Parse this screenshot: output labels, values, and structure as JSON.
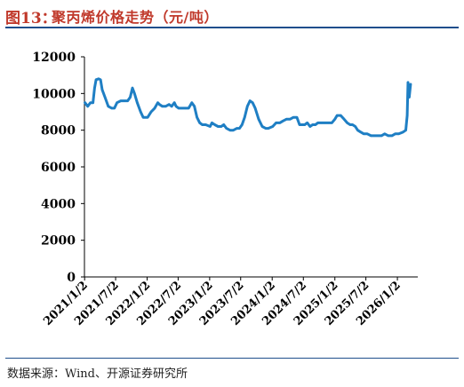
{
  "figure": {
    "number": "图13：",
    "title": "聚丙烯价格走势（元/吨）",
    "source": "数据来源：Wind、开源证券研究所"
  },
  "colors": {
    "title": "#c0392b",
    "rule": "#1f4e8c",
    "series": "#1f7fc4",
    "axis": "#000000"
  },
  "chart_data": {
    "type": "line",
    "title": "聚丙烯价格走势（元/吨）",
    "xlabel": "",
    "ylabel": "",
    "ylim": [
      0,
      12000
    ],
    "yticks": [
      0,
      2000,
      4000,
      6000,
      8000,
      10000,
      12000
    ],
    "xlim": [
      "2021-01-01",
      "2026-05-01"
    ],
    "xticks": [
      "2021/1/2",
      "2021/7/2",
      "2022/1/2",
      "2022/7/2",
      "2023/1/2",
      "2023/7/2",
      "2024/1/2",
      "2024/7/2",
      "2025/1/2",
      "2025/7/2",
      "2026/1/2"
    ],
    "grid": false,
    "legend": "none",
    "series": [
      {
        "values": [
          [
            "2021-01-04",
            9500
          ],
          [
            "2021-01-20",
            9300
          ],
          [
            "2021-02-05",
            9500
          ],
          [
            "2021-02-20",
            9500
          ],
          [
            "2021-03-01",
            10300
          ],
          [
            "2021-03-10",
            10750
          ],
          [
            "2021-03-25",
            10800
          ],
          [
            "2021-04-05",
            10750
          ],
          [
            "2021-04-15",
            10200
          ],
          [
            "2021-05-01",
            9800
          ],
          [
            "2021-05-20",
            9300
          ],
          [
            "2021-06-10",
            9200
          ],
          [
            "2021-06-25",
            9200
          ],
          [
            "2021-07-10",
            9500
          ],
          [
            "2021-08-01",
            9600
          ],
          [
            "2021-08-20",
            9600
          ],
          [
            "2021-09-10",
            9600
          ],
          [
            "2021-09-25",
            9800
          ],
          [
            "2021-10-08",
            10300
          ],
          [
            "2021-10-20",
            10000
          ],
          [
            "2021-11-05",
            9500
          ],
          [
            "2021-11-25",
            9000
          ],
          [
            "2021-12-10",
            8700
          ],
          [
            "2022-01-05",
            8700
          ],
          [
            "2022-01-25",
            9000
          ],
          [
            "2022-02-15",
            9200
          ],
          [
            "2022-03-05",
            9500
          ],
          [
            "2022-03-15",
            9400
          ],
          [
            "2022-04-01",
            9300
          ],
          [
            "2022-04-20",
            9300
          ],
          [
            "2022-05-10",
            9400
          ],
          [
            "2022-05-25",
            9300
          ],
          [
            "2022-06-10",
            9500
          ],
          [
            "2022-06-20",
            9300
          ],
          [
            "2022-07-05",
            9200
          ],
          [
            "2022-07-25",
            9200
          ],
          [
            "2022-08-15",
            9200
          ],
          [
            "2022-09-01",
            9200
          ],
          [
            "2022-09-20",
            9500
          ],
          [
            "2022-10-05",
            9300
          ],
          [
            "2022-10-20",
            8700
          ],
          [
            "2022-11-05",
            8400
          ],
          [
            "2022-11-20",
            8300
          ],
          [
            "2022-12-10",
            8300
          ],
          [
            "2023-01-05",
            8200
          ],
          [
            "2023-01-15",
            8400
          ],
          [
            "2023-02-01",
            8300
          ],
          [
            "2023-02-20",
            8200
          ],
          [
            "2023-03-10",
            8200
          ],
          [
            "2023-03-25",
            8300
          ],
          [
            "2023-04-10",
            8100
          ],
          [
            "2023-05-01",
            8000
          ],
          [
            "2023-05-20",
            8000
          ],
          [
            "2023-06-10",
            8100
          ],
          [
            "2023-06-25",
            8100
          ],
          [
            "2023-07-10",
            8300
          ],
          [
            "2023-07-25",
            8700
          ],
          [
            "2023-08-10",
            9300
          ],
          [
            "2023-08-25",
            9600
          ],
          [
            "2023-09-10",
            9500
          ],
          [
            "2023-09-25",
            9200
          ],
          [
            "2023-10-15",
            8600
          ],
          [
            "2023-11-05",
            8200
          ],
          [
            "2023-11-25",
            8100
          ],
          [
            "2023-12-10",
            8100
          ],
          [
            "2024-01-05",
            8200
          ],
          [
            "2024-01-25",
            8400
          ],
          [
            "2024-02-15",
            8400
          ],
          [
            "2024-03-05",
            8500
          ],
          [
            "2024-03-25",
            8600
          ],
          [
            "2024-04-15",
            8600
          ],
          [
            "2024-05-05",
            8700
          ],
          [
            "2024-05-25",
            8700
          ],
          [
            "2024-06-10",
            8300
          ],
          [
            "2024-06-25",
            8300
          ],
          [
            "2024-07-10",
            8300
          ],
          [
            "2024-07-25",
            8400
          ],
          [
            "2024-08-10",
            8200
          ],
          [
            "2024-08-25",
            8300
          ],
          [
            "2024-09-10",
            8300
          ],
          [
            "2024-09-25",
            8400
          ],
          [
            "2024-10-15",
            8400
          ],
          [
            "2024-11-05",
            8400
          ],
          [
            "2024-11-25",
            8400
          ],
          [
            "2024-12-15",
            8400
          ],
          [
            "2025-01-02",
            8600
          ],
          [
            "2025-01-15",
            8800
          ],
          [
            "2025-02-05",
            8800
          ],
          [
            "2025-02-25",
            8600
          ],
          [
            "2025-03-15",
            8400
          ],
          [
            "2025-04-01",
            8300
          ],
          [
            "2025-04-15",
            8300
          ],
          [
            "2025-05-01",
            8200
          ],
          [
            "2025-05-15",
            8000
          ],
          [
            "2025-06-01",
            7900
          ],
          [
            "2025-06-20",
            7800
          ],
          [
            "2025-07-10",
            7800
          ],
          [
            "2025-08-01",
            7700
          ],
          [
            "2025-08-20",
            7700
          ],
          [
            "2025-09-10",
            7700
          ],
          [
            "2025-10-01",
            7700
          ],
          [
            "2025-10-20",
            7800
          ],
          [
            "2025-11-10",
            7700
          ],
          [
            "2025-12-01",
            7700
          ],
          [
            "2025-12-20",
            7800
          ],
          [
            "2026-01-10",
            7800
          ],
          [
            "2026-02-05",
            7900
          ],
          [
            "2026-02-20",
            8000
          ],
          [
            "2026-02-28",
            8800
          ],
          [
            "2026-03-05",
            10600
          ],
          [
            "2026-03-12",
            9800
          ],
          [
            "2026-03-20",
            10500
          ]
        ]
      }
    ]
  }
}
